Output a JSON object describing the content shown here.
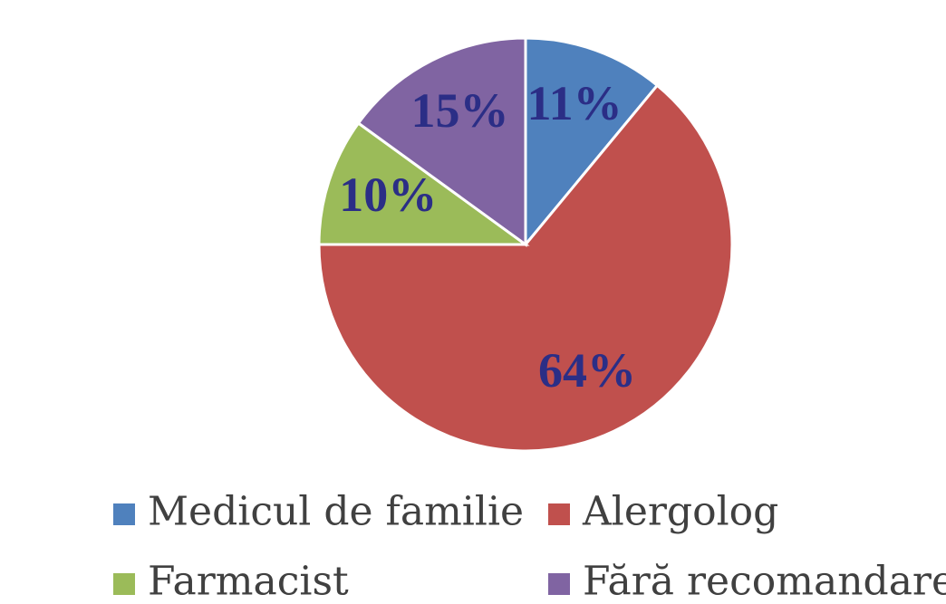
{
  "chart_data": {
    "type": "pie",
    "categories": [
      "Medicul de familie",
      "Alergolog",
      "Farmacist",
      "Fără recomandare"
    ],
    "values": [
      11,
      64,
      10,
      15
    ],
    "value_labels": [
      "11%",
      "64%",
      "10%",
      "15%"
    ],
    "colors": [
      "#4f81bd",
      "#c0504d",
      "#9bbb59",
      "#8064a2"
    ],
    "legend": "bottom"
  }
}
